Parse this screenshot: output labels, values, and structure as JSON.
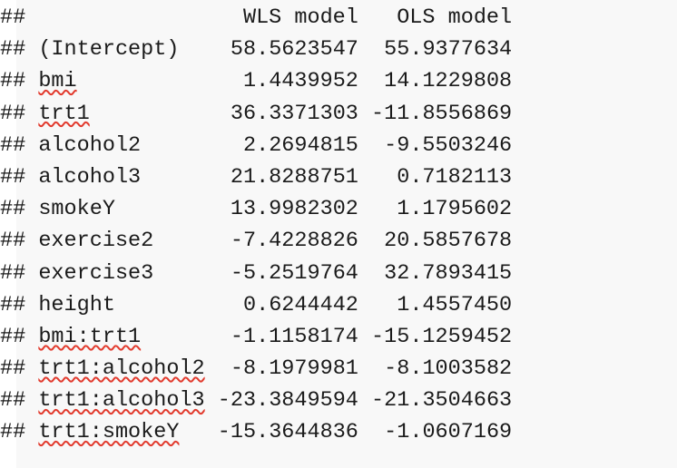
{
  "prefix": "## ",
  "header": {
    "wls": "WLS model",
    "ols": "OLS model"
  },
  "rows": [
    {
      "term": "(Intercept)",
      "spell": false,
      "wls": "58.5623547",
      "ols": "55.9377634"
    },
    {
      "term": "bmi",
      "spell": true,
      "wls": "1.4439952",
      "ols": "14.1229808"
    },
    {
      "term": "trt1",
      "spell": true,
      "wls": "36.3371303",
      "ols": "-11.8556869"
    },
    {
      "term": "alcohol2",
      "spell": false,
      "wls": "2.2694815",
      "ols": "-9.5503246"
    },
    {
      "term": "alcohol3",
      "spell": false,
      "wls": "21.8288751",
      "ols": "0.7182113"
    },
    {
      "term": "smokeY",
      "spell": false,
      "wls": "13.9982302",
      "ols": "1.1795602"
    },
    {
      "term": "exercise2",
      "spell": false,
      "wls": "-7.4228826",
      "ols": "20.5857678"
    },
    {
      "term": "exercise3",
      "spell": false,
      "wls": "-5.2519764",
      "ols": "32.7893415"
    },
    {
      "term": "height",
      "spell": false,
      "wls": "0.6244442",
      "ols": "1.4557450"
    },
    {
      "term": "bmi:trt1",
      "spell": true,
      "wls": "-1.1158174",
      "ols": "-15.1259452"
    },
    {
      "term": "trt1:alcohol2",
      "spell": true,
      "wls": "-8.1979981",
      "ols": "-8.1003582"
    },
    {
      "term": "trt1:alcohol3",
      "spell": true,
      "wls": "-23.3849594",
      "ols": "-21.3504663"
    },
    {
      "term": "trt1:smokeY",
      "spell": true,
      "wls": "-15.3644836",
      "ols": "-1.0607169"
    }
  ]
}
